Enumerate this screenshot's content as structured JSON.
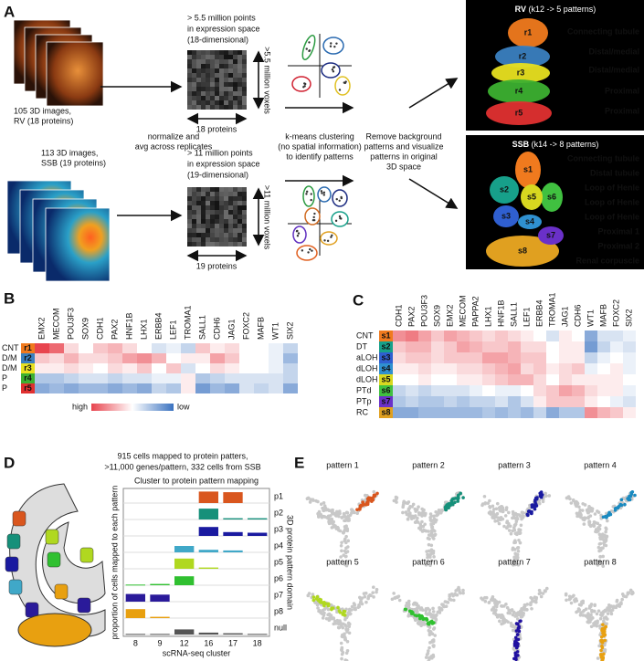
{
  "panel_labels": [
    "A",
    "B",
    "C",
    "D",
    "E"
  ],
  "panel_a": {
    "rv_stack_caption": [
      "105 3D images,",
      "RV (18 proteins)"
    ],
    "rv_points": [
      "> 5.5 million points",
      "in expression space",
      "(18-dimensional)"
    ],
    "rv_voxels": ">5.5 million voxels",
    "rv_proteins": "18 proteins",
    "normalize": [
      "normalize and",
      "avg across replicates"
    ],
    "ssb_stack_caption": [
      "113 3D images,",
      "SSB (19 proteins)"
    ],
    "ssb_points": [
      "> 11 million points",
      "in expression space",
      "(19-dimensional)"
    ],
    "ssb_voxels": ">11 million voxels",
    "ssb_proteins": "19 proteins",
    "kmeans": [
      "k-means clustering",
      "(no spatial information)",
      "to identify patterns"
    ],
    "remove": [
      "Remove background",
      "patterns and visualize",
      "patterns in original",
      "3D space"
    ],
    "rv_panel": {
      "name": "RV",
      "subtitle": "(k12 -> 5 patterns)",
      "regions": [
        {
          "label": "r1",
          "name": "Connecting tubule",
          "color": "#f07a1e"
        },
        {
          "label": "r2",
          "name": "Distal/medial",
          "color": "#3a7fc0"
        },
        {
          "label": "r3",
          "name": "Distal/medial",
          "color": "#e8e020"
        },
        {
          "label": "r4",
          "name": "Proximal",
          "color": "#3cb030"
        },
        {
          "label": "r5",
          "name": "Proximal",
          "color": "#e03030"
        }
      ]
    },
    "ssb_panel": {
      "name": "SSB",
      "subtitle": "(k14 -> 8 patterns)",
      "regions": [
        {
          "label": "s1",
          "name": "Connecting tubule",
          "color": "#f07a1e"
        },
        {
          "label": "s2",
          "name": "Distal tubule",
          "color": "#17a08a"
        },
        {
          "label": "s3",
          "name": "Loop of Henle",
          "color": "#2f5fd0"
        },
        {
          "label": "s4",
          "name": "Loop of Henle",
          "color": "#2f90d0"
        },
        {
          "label": "s5",
          "name": "Loop of Henle",
          "color": "#d8d820"
        },
        {
          "label": "s6",
          "name": "Proximal 1",
          "color": "#40c040"
        },
        {
          "label": "s7",
          "name": "Proximal 2",
          "color": "#6a30c8"
        },
        {
          "label": "s8",
          "name": "Renal corpuscle",
          "color": "#e0a020"
        }
      ]
    }
  },
  "panel_b": {
    "columns": [
      "EMX2",
      "MECOM",
      "POU3F3",
      "SOX9",
      "CDH1",
      "PAX2",
      "HNF1B",
      "LHX1",
      "ERBB4",
      "LEF1",
      "TROMA1",
      "SALL1",
      "CDH6",
      "JAG1",
      "FOXC2",
      "MAFB",
      "WT1",
      "SIX2"
    ],
    "rows": [
      {
        "domain": "CNT",
        "label": "r1",
        "color": "#f07a1e",
        "values": [
          1,
          0.8,
          0.2,
          0,
          0.3,
          0.4,
          0.2,
          0,
          -0.2,
          -0.1,
          -0.3,
          0.3,
          0.1,
          0.2,
          0,
          0,
          -0.1,
          -0.3
        ]
      },
      {
        "domain": "D/M",
        "label": "r2",
        "color": "#3a7fc0",
        "values": [
          0.3,
          0.2,
          0.4,
          0.2,
          0.2,
          0.3,
          0.5,
          0.6,
          0.4,
          0,
          0.1,
          0.1,
          0.5,
          0.3,
          0,
          0,
          -0.1,
          -0.5
        ]
      },
      {
        "domain": "D/M",
        "label": "r3",
        "color": "#e8e020",
        "values": [
          0.1,
          0.1,
          0.2,
          0.1,
          0,
          0.2,
          0.1,
          0.3,
          0,
          0.3,
          -0.2,
          0,
          0.2,
          0.1,
          0,
          0,
          -0.1,
          -0.3
        ]
      },
      {
        "domain": "P",
        "label": "r4",
        "color": "#3cb030",
        "values": [
          -0.4,
          -0.4,
          -0.3,
          -0.2,
          -0.2,
          -0.3,
          -0.2,
          -0.2,
          -0.1,
          -0.1,
          0.1,
          -0.4,
          -0.3,
          -0.2,
          -0.2,
          -0.2,
          -0.2,
          -0.3
        ]
      },
      {
        "domain": "P",
        "label": "r5",
        "color": "#e03030",
        "values": [
          -0.6,
          -0.5,
          -0.6,
          -0.5,
          -0.5,
          -0.6,
          -0.5,
          -0.6,
          -0.3,
          -0.4,
          0.1,
          -0.7,
          -0.5,
          -0.6,
          -0.2,
          -0.3,
          -0.2,
          -0.6
        ]
      }
    ],
    "legend_high": "high",
    "legend_low": "low"
  },
  "panel_c": {
    "columns": [
      "CDH1",
      "PAX2",
      "POU3F3",
      "SOX9",
      "EMX2",
      "MECOM",
      "PAPPA2",
      "LHX1",
      "HNF1B",
      "SALL1",
      "LEF1",
      "ERBB4",
      "TROMA1",
      "JAG1",
      "CDH6",
      "WT1",
      "MAFB",
      "FOXC2",
      "SIX2"
    ],
    "rows": [
      {
        "domain": "CNT",
        "label": "s1",
        "color": "#f07a1e",
        "values": [
          0.6,
          0.7,
          0.5,
          0.3,
          0.5,
          0.4,
          0.3,
          0.2,
          0.3,
          0.2,
          0.1,
          0,
          -0.2,
          0.1,
          0,
          -0.6,
          -0.2,
          -0.2,
          -0.1
        ]
      },
      {
        "domain": "DT",
        "label": "s2",
        "color": "#17a08a",
        "values": [
          0.3,
          0.4,
          0.4,
          0.2,
          0.3,
          0.5,
          0.4,
          0.3,
          0.3,
          0.4,
          0.2,
          0.2,
          0,
          0.1,
          0.1,
          -0.7,
          -0.3,
          -0.1,
          -0.2
        ]
      },
      {
        "domain": "aLOH",
        "label": "s3",
        "color": "#2f5fd0",
        "values": [
          0.2,
          0.3,
          0.3,
          0.2,
          0.3,
          0.3,
          0.3,
          0.5,
          0.5,
          0.4,
          0.3,
          0.3,
          0,
          0.1,
          0.1,
          -0.3,
          -0.1,
          0,
          -0.1
        ]
      },
      {
        "domain": "dLOH",
        "label": "s4",
        "color": "#2f90d0",
        "values": [
          0.1,
          0.1,
          0.2,
          0.1,
          0.1,
          0.2,
          0.2,
          0.3,
          0.4,
          0.5,
          0.2,
          0.3,
          0.1,
          0.2,
          0.3,
          -0.1,
          0,
          0.1,
          -0.1
        ]
      },
      {
        "domain": "dLOH",
        "label": "s5",
        "color": "#d8d820",
        "values": [
          0,
          0,
          0.1,
          0,
          0,
          0.1,
          0.1,
          0.2,
          0.3,
          0.4,
          0.4,
          0.2,
          0,
          0.2,
          0.1,
          0.1,
          0.1,
          0.1,
          0
        ]
      },
      {
        "domain": "PTd",
        "label": "s6",
        "color": "#40c040",
        "values": [
          -0.3,
          -0.2,
          -0.3,
          -0.2,
          -0.2,
          -0.2,
          -0.1,
          0,
          -0.1,
          -0.1,
          0,
          0.2,
          0.3,
          0.5,
          0.4,
          0.2,
          0.1,
          0.1,
          -0.1
        ]
      },
      {
        "domain": "PTp",
        "label": "s7",
        "color": "#6a30c8",
        "values": [
          -0.4,
          -0.3,
          -0.4,
          -0.4,
          -0.3,
          -0.4,
          -0.3,
          -0.3,
          -0.2,
          -0.4,
          -0.2,
          0.1,
          0.3,
          0.3,
          0.3,
          0.1,
          0,
          -0.1,
          -0.2
        ]
      },
      {
        "domain": "RC",
        "label": "s8",
        "color": "#e0a020",
        "values": [
          -0.6,
          -0.6,
          -0.5,
          -0.5,
          -0.5,
          -0.5,
          -0.5,
          -0.4,
          -0.5,
          -0.4,
          -0.5,
          -0.3,
          -0.6,
          -0.4,
          -0.4,
          0.6,
          0.4,
          0.3,
          0.1
        ]
      }
    ]
  },
  "panel_d": {
    "title": [
      "915 cells mapped to protein patters,",
      ">11,000 genes/pattern, 332 cells from SSB"
    ],
    "chart_title": "Cluster to protein pattern mapping",
    "y_label": "proportion of cells mapped to each pattern",
    "x_label": "scRNA-seq cluster",
    "right_label": "3D protein pattern domain",
    "categories": [
      "8",
      "9",
      "12",
      "16",
      "17",
      "18"
    ],
    "rows": [
      {
        "name": "p1",
        "color": "#d9561e",
        "values": [
          null,
          null,
          null,
          0.9,
          0.85,
          null
        ]
      },
      {
        "name": "p2",
        "color": "#16907a",
        "values": [
          null,
          null,
          null,
          0.85,
          0.1,
          0.1
        ]
      },
      {
        "name": "p3",
        "color": "#1a1aa0",
        "values": [
          null,
          null,
          null,
          0.7,
          0.3,
          0.25
        ]
      },
      {
        "name": "p4",
        "color": "#40a8c8",
        "values": [
          null,
          null,
          0.5,
          0.2,
          0.15,
          null
        ]
      },
      {
        "name": "p5",
        "color": "#b0d820",
        "values": [
          null,
          null,
          0.8,
          0.1,
          null,
          null
        ]
      },
      {
        "name": "p6",
        "color": "#30c030",
        "values": [
          0.05,
          0.1,
          0.7,
          null,
          null,
          null
        ]
      },
      {
        "name": "p7",
        "color": "#2a1a9a",
        "values": [
          0.6,
          0.55,
          null,
          null,
          null,
          null
        ]
      },
      {
        "name": "p8",
        "color": "#e8a010",
        "values": [
          0.7,
          0.1,
          null,
          null,
          null,
          null
        ]
      },
      {
        "name": "null",
        "color": "#555555",
        "values": [
          0.05,
          0.05,
          0.4,
          0.15,
          0.1,
          0.05
        ]
      }
    ]
  },
  "panel_e": {
    "patterns": [
      {
        "title": "pattern 1",
        "color": "#d9561e"
      },
      {
        "title": "pattern 2",
        "color": "#16907a"
      },
      {
        "title": "pattern 3",
        "color": "#1a1aa0"
      },
      {
        "title": "pattern 4",
        "color": "#1a8ac0"
      },
      {
        "title": "pattern 5",
        "color": "#b0d820"
      },
      {
        "title": "pattern 6",
        "color": "#30c030"
      },
      {
        "title": "pattern 7",
        "color": "#2010a0"
      },
      {
        "title": "pattern 8",
        "color": "#e8a010"
      }
    ]
  }
}
